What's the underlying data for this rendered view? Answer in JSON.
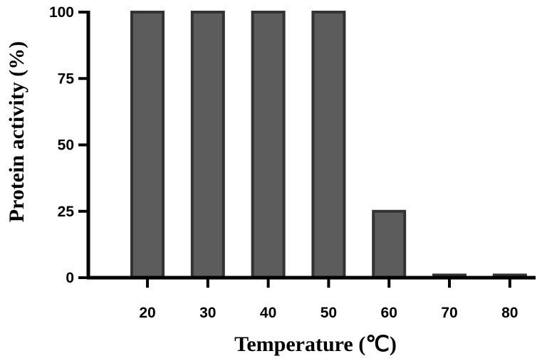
{
  "chart_data": {
    "type": "bar",
    "categories": [
      "20",
      "30",
      "40",
      "50",
      "60",
      "70",
      "80"
    ],
    "values": [
      100,
      100,
      100,
      100,
      25,
      1,
      1
    ],
    "title": "",
    "xlabel": "Temperature (℃)",
    "ylabel": "Protein activity (%)",
    "ylim": [
      0,
      100
    ],
    "yticks": [
      "0",
      "25",
      "50",
      "75",
      "100"
    ],
    "grid": false,
    "legend": "none",
    "colors": {
      "bar_fill": "#5c5c5c",
      "bar_stroke": "#333333",
      "axis": "#000000"
    }
  }
}
